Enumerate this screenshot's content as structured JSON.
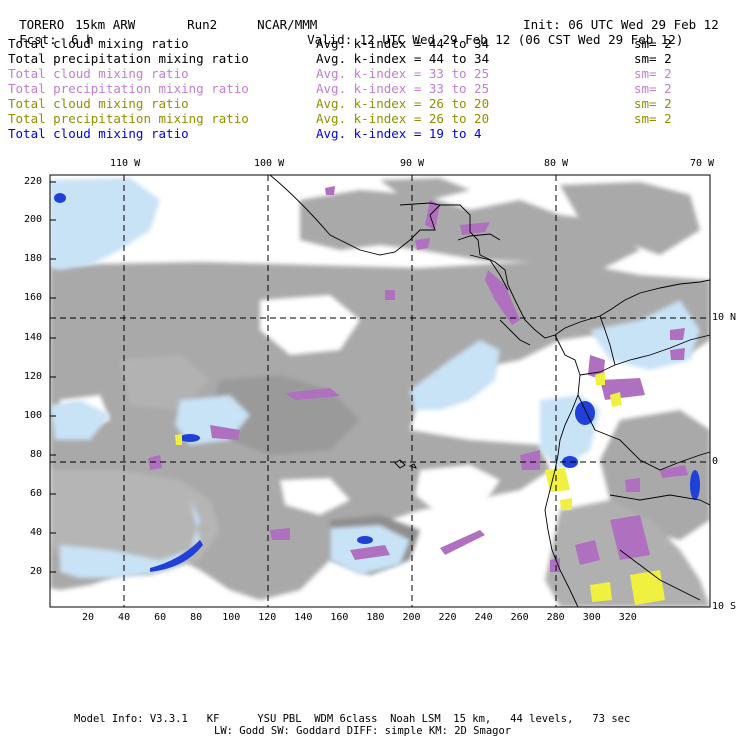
{
  "header": {
    "model": "TORERO",
    "resolution": "15km ARW",
    "run": "Run2",
    "org": "NCAR/MMM",
    "init": "Init: 06 UTC Wed 29 Feb 12",
    "fcst_label": "Fcst:",
    "fcst_value": "6 h",
    "valid": "Valid: 12 UTC Wed 29 Feb 12 (06 CST Wed 29 Feb 12)"
  },
  "legend": [
    {
      "field": "Total cloud mixing ratio",
      "index": "Avg. k-index = 44 to 34",
      "sm": "sm= 2",
      "color": "#000000"
    },
    {
      "field": "Total precipitation mixing ratio",
      "index": "Avg. k-index = 44 to 34",
      "sm": "sm= 2",
      "color": "#000000"
    },
    {
      "field": "Total cloud mixing ratio",
      "index": "Avg. k-index = 33 to 25",
      "sm": "sm= 2",
      "color": "#c080d0"
    },
    {
      "field": "Total precipitation mixing ratio",
      "index": "Avg. k-index = 33 to 25",
      "sm": "sm= 2",
      "color": "#c080d0"
    },
    {
      "field": "Total cloud mixing ratio",
      "index": "Avg. k-index = 26 to 20",
      "sm": "sm= 2",
      "color": "#909000"
    },
    {
      "field": "Total precipitation mixing ratio",
      "index": "Avg. k-index = 26 to 20",
      "sm": "sm= 2",
      "color": "#909000"
    },
    {
      "field": "Total cloud mixing ratio",
      "index": "Avg. k-index = 19 to 4",
      "sm": "",
      "color": "#0000e0"
    }
  ],
  "axes": {
    "top_lon": [
      "110 W",
      "100 W",
      "90 W",
      "80 W",
      "70 W"
    ],
    "right_lat": [
      "10 N",
      "0",
      "10 S"
    ],
    "left_ticks": [
      "220",
      "200",
      "180",
      "160",
      "140",
      "120",
      "100",
      "80",
      "60",
      "40",
      "20"
    ],
    "bottom_ticks": [
      "20",
      "40",
      "60",
      "80",
      "100",
      "120",
      "140",
      "160",
      "180",
      "200",
      "220",
      "240",
      "260",
      "280",
      "300",
      "320"
    ]
  },
  "footer": {
    "line1": "Model Info: V3.3.1   KF      YSU PBL  WDM 6class  Noah LSM  15 km,   44 levels,   73 sec",
    "line2": "LW: Godd SW: Goddard DIFF: simple KM: 2D Smagor"
  },
  "colors": {
    "gray_cloud": "#a8a8a8",
    "light_blue": "#c8e4f8",
    "blue": "#3050e0",
    "purple": "#b070c0",
    "yellow": "#f0f040"
  }
}
